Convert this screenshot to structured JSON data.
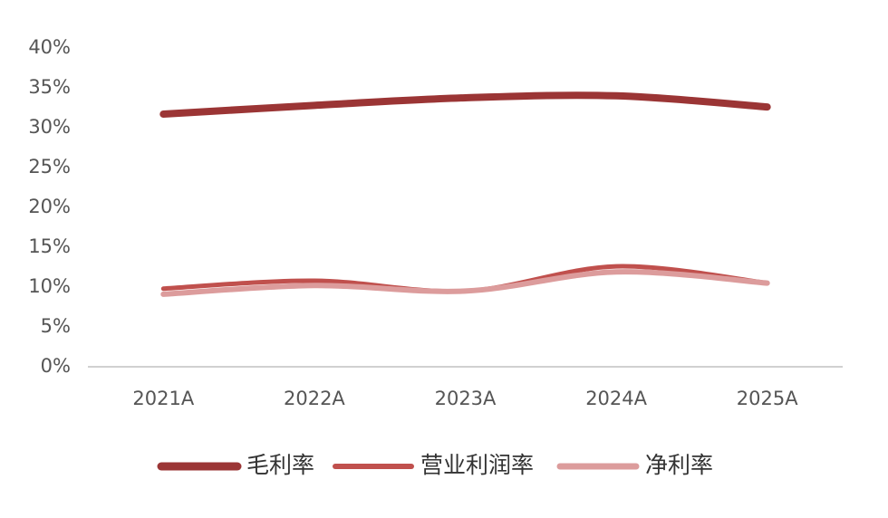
{
  "chart_data": {
    "type": "line",
    "categories": [
      "2021A",
      "2022A",
      "2023A",
      "2024A",
      "2025A"
    ],
    "series": [
      {
        "name": "毛利率",
        "color": "#9b3535",
        "values": [
          31.7,
          32.8,
          33.75,
          34.0,
          32.6
        ]
      },
      {
        "name": "营业利润率",
        "color": "#c0504d",
        "values": [
          9.8,
          10.8,
          9.5,
          12.6,
          10.5
        ]
      },
      {
        "name": "净利率",
        "color": "#dc9c9c",
        "values": [
          9.1,
          10.2,
          9.5,
          11.9,
          10.5
        ]
      }
    ],
    "ylim": [
      0,
      40
    ],
    "yticks": [
      {
        "value": 0,
        "label": "0%"
      },
      {
        "value": 5,
        "label": "5%"
      },
      {
        "value": 10,
        "label": "10%"
      },
      {
        "value": 15,
        "label": "15%"
      },
      {
        "value": 20,
        "label": "20%"
      },
      {
        "value": 25,
        "label": "25%"
      },
      {
        "value": 30,
        "label": "30%"
      },
      {
        "value": 35,
        "label": "35%"
      },
      {
        "value": 40,
        "label": "40%"
      }
    ],
    "grid": false,
    "legend": "bottom"
  }
}
